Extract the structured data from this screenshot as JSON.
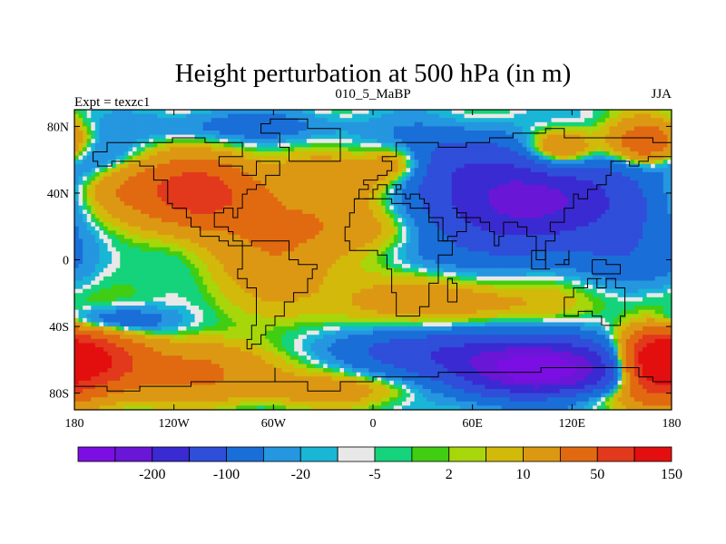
{
  "chart_data": {
    "type": "heatmap",
    "title": "Height perturbation at 500 hPa (in m)",
    "left_string": "Expt = texzc1",
    "center_string": "010_5_MaBP",
    "right_string": "JJA",
    "xlim": [
      -180,
      180
    ],
    "ylim": [
      -90,
      90
    ],
    "x_ticks": [
      {
        "value": -180,
        "label": "180"
      },
      {
        "value": -120,
        "label": "120W"
      },
      {
        "value": -60,
        "label": "60W"
      },
      {
        "value": 0,
        "label": "0"
      },
      {
        "value": 60,
        "label": "60E"
      },
      {
        "value": 120,
        "label": "120E"
      },
      {
        "value": 180,
        "label": "180"
      }
    ],
    "y_ticks": [
      {
        "value": 80,
        "label": "80N"
      },
      {
        "value": 40,
        "label": "40N"
      },
      {
        "value": 0,
        "label": "0"
      },
      {
        "value": -40,
        "label": "40S"
      },
      {
        "value": -80,
        "label": "80S"
      }
    ],
    "colorbar": {
      "colors": [
        "#7b0fe3",
        "#6a16d6",
        "#3a2ad2",
        "#2f4ed9",
        "#1a6ed8",
        "#2596e0",
        "#19b6d6",
        "#e8e8e8",
        "#14d37a",
        "#40cd12",
        "#a7d60a",
        "#d2b90a",
        "#dc9813",
        "#e16a10",
        "#e2381c",
        "#e30f0f"
      ],
      "labels": [
        {
          "boundary": 2,
          "text": "-200"
        },
        {
          "boundary": 4,
          "text": "-100"
        },
        {
          "boundary": 6,
          "text": "-20"
        },
        {
          "boundary": 8,
          "text": "-5"
        },
        {
          "boundary": 10,
          "text": "2"
        },
        {
          "boundary": 12,
          "text": "10"
        },
        {
          "boundary": 14,
          "text": "50"
        },
        {
          "boundary": 16,
          "text": "150"
        }
      ]
    },
    "field_features": [
      {
        "lon": -105,
        "lat": 40,
        "value": 120
      },
      {
        "lon": -150,
        "lat": 50,
        "value": 60
      },
      {
        "lon": -60,
        "lat": 10,
        "value": 35
      },
      {
        "lon": -20,
        "lat": 50,
        "value": 45
      },
      {
        "lon": -170,
        "lat": -60,
        "value": 140
      },
      {
        "lon": 165,
        "lat": -62,
        "value": 150
      },
      {
        "lon": -100,
        "lat": -63,
        "value": 50
      },
      {
        "lon": 100,
        "lat": -68,
        "value": -220
      },
      {
        "lon": 95,
        "lat": 35,
        "value": -150
      },
      {
        "lon": 40,
        "lat": 60,
        "value": -30
      },
      {
        "lon": 115,
        "lat": 65,
        "value": 60
      },
      {
        "lon": 30,
        "lat": 0,
        "value": -10
      }
    ]
  }
}
